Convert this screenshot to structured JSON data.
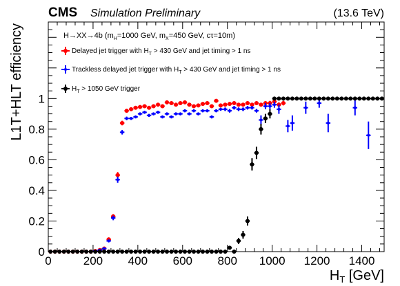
{
  "header": {
    "experiment": "CMS",
    "status": "Simulation Preliminary",
    "energy": "(13.6 TeV)"
  },
  "legend": {
    "heading": "H→XX→4b (m",
    "heading_sub1": "H",
    "heading_mid": "=1000 GeV, m",
    "heading_sub2": "X",
    "heading_tail": "=450 GeV, cτ=10m)"
  },
  "chart_data": {
    "type": "scatter",
    "xlabel": "H",
    "xlabel_sub": "T",
    "xlabel_unit": " [GeV]",
    "ylabel": "L1T+HLT efficiency",
    "xlim": [
      0,
      1500
    ],
    "ylim": [
      0,
      1.5
    ],
    "x_ticks": [
      0,
      200,
      400,
      600,
      800,
      1000,
      1200,
      1400
    ],
    "y_ticks": [
      0,
      0.2,
      0.4,
      0.6,
      0.8,
      1
    ],
    "series": [
      {
        "name_pre": "Delayed jet trigger with H",
        "name_sub": "T",
        "name_post": " > 430 GeV and jet timing > 1 ns",
        "color": "#ff0000",
        "x": [
          10,
          30,
          50,
          70,
          90,
          110,
          130,
          150,
          170,
          190,
          210,
          230,
          250,
          270,
          290,
          310,
          330,
          350,
          370,
          390,
          410,
          430,
          450,
          470,
          490,
          510,
          530,
          550,
          570,
          590,
          610,
          630,
          650,
          670,
          690,
          710,
          730,
          750,
          770,
          790,
          810,
          830,
          850,
          870,
          890,
          910,
          930,
          950,
          970,
          990,
          1010,
          1030,
          1050
        ],
        "y": [
          0,
          0,
          0,
          0,
          0,
          0,
          0,
          0,
          0,
          0,
          0.004,
          0.01,
          0.02,
          0.08,
          0.23,
          0.5,
          0.84,
          0.92,
          0.93,
          0.94,
          0.945,
          0.95,
          0.94,
          0.95,
          0.96,
          0.95,
          0.975,
          0.97,
          0.96,
          0.97,
          0.975,
          0.96,
          0.95,
          0.955,
          0.965,
          0.97,
          0.95,
          0.985,
          0.955,
          0.96,
          0.965,
          0.97,
          0.96,
          0.96,
          0.97,
          0.96,
          0.97,
          0.96,
          0.97,
          0.97,
          0.98,
          0.96,
          0.97
        ],
        "yerr": [
          0,
          0,
          0,
          0,
          0,
          0,
          0,
          0,
          0,
          0,
          0.003,
          0.005,
          0.006,
          0.01,
          0.015,
          0.02,
          0.015,
          0.012,
          0.01,
          0.01,
          0.01,
          0.01,
          0.01,
          0.01,
          0.01,
          0.01,
          0.01,
          0.01,
          0.01,
          0.01,
          0.01,
          0.01,
          0.01,
          0.01,
          0.01,
          0.01,
          0.01,
          0.01,
          0.01,
          0.012,
          0.012,
          0.012,
          0.012,
          0.012,
          0.012,
          0.012,
          0.012,
          0.012,
          0.012,
          0.015,
          0.015,
          0.015,
          0.015
        ]
      },
      {
        "name_pre": "Trackless delayed jet trigger with H",
        "name_sub": "T",
        "name_post": " > 430 GeV and jet timing > 1 ns",
        "color": "#0000ff",
        "x": [
          10,
          30,
          50,
          70,
          90,
          110,
          130,
          150,
          170,
          190,
          210,
          230,
          250,
          270,
          290,
          310,
          330,
          350,
          370,
          390,
          410,
          430,
          450,
          470,
          490,
          510,
          530,
          550,
          570,
          590,
          610,
          630,
          650,
          670,
          690,
          710,
          730,
          750,
          770,
          790,
          810,
          830,
          850,
          870,
          890,
          910,
          930,
          950,
          970,
          990,
          1010,
          1030,
          1070,
          1090,
          1150,
          1210,
          1250,
          1370,
          1430
        ],
        "y": [
          0,
          0,
          0,
          0,
          0,
          0,
          0,
          0,
          0,
          0,
          0.004,
          0.01,
          0.02,
          0.07,
          0.22,
          0.47,
          0.78,
          0.87,
          0.87,
          0.88,
          0.9,
          0.91,
          0.89,
          0.9,
          0.91,
          0.88,
          0.9,
          0.88,
          0.9,
          0.9,
          0.92,
          0.9,
          0.92,
          0.9,
          0.92,
          0.92,
          0.88,
          0.92,
          0.93,
          0.93,
          0.92,
          0.94,
          0.93,
          0.93,
          0.94,
          0.94,
          0.92,
          0.86,
          0.95,
          0.95,
          0.96,
          0.93,
          0.82,
          0.84,
          0.94,
          0.97,
          0.84,
          0.94,
          0.76
        ],
        "yerr": [
          0,
          0,
          0,
          0,
          0,
          0,
          0,
          0,
          0,
          0,
          0.003,
          0.005,
          0.006,
          0.01,
          0.015,
          0.02,
          0.015,
          0.012,
          0.01,
          0.01,
          0.01,
          0.01,
          0.01,
          0.01,
          0.01,
          0.01,
          0.01,
          0.01,
          0.01,
          0.01,
          0.01,
          0.01,
          0.01,
          0.01,
          0.01,
          0.01,
          0.01,
          0.01,
          0.01,
          0.012,
          0.012,
          0.012,
          0.012,
          0.012,
          0.012,
          0.012,
          0.012,
          0.03,
          0.02,
          0.02,
          0.02,
          0.03,
          0.04,
          0.05,
          0.04,
          0.03,
          0.06,
          0.05,
          0.09
        ]
      },
      {
        "name_pre": "H",
        "name_sub": "T",
        "name_post": " > 1050 GeV trigger",
        "color": "#000000",
        "x": [
          10,
          30,
          50,
          70,
          90,
          110,
          130,
          150,
          170,
          190,
          210,
          230,
          250,
          270,
          290,
          310,
          330,
          350,
          370,
          390,
          410,
          430,
          450,
          470,
          490,
          510,
          530,
          550,
          570,
          590,
          610,
          630,
          650,
          670,
          690,
          710,
          730,
          750,
          770,
          790,
          810,
          830,
          850,
          870,
          890,
          910,
          930,
          950,
          970,
          990,
          1010,
          1030,
          1050,
          1070,
          1090,
          1110,
          1130,
          1150,
          1170,
          1190,
          1210,
          1230,
          1250,
          1270,
          1290,
          1310,
          1330,
          1350,
          1370,
          1390,
          1410,
          1430,
          1450,
          1470,
          1490
        ],
        "y": [
          0,
          0,
          0,
          0,
          0,
          0,
          0,
          0,
          0,
          0,
          0,
          0,
          0,
          0,
          0,
          0,
          0,
          0,
          0,
          0,
          0,
          0,
          0,
          0,
          0,
          0,
          0,
          0,
          0,
          0,
          0,
          0,
          0,
          0,
          0,
          0,
          0,
          0,
          0,
          0,
          0.025,
          0,
          0.07,
          0.11,
          0.2,
          0.57,
          0.645,
          0.8,
          0.87,
          0.9,
          1,
          1,
          1,
          1,
          1,
          1,
          1,
          1,
          1,
          1,
          1,
          1,
          1,
          1,
          1,
          1,
          1,
          1,
          1,
          1,
          1,
          1,
          1,
          1,
          1
        ],
        "yerr": [
          0,
          0,
          0,
          0,
          0,
          0,
          0,
          0,
          0,
          0,
          0,
          0,
          0,
          0,
          0,
          0,
          0,
          0,
          0,
          0,
          0,
          0,
          0,
          0,
          0,
          0,
          0,
          0,
          0,
          0,
          0,
          0,
          0,
          0,
          0,
          0,
          0,
          0,
          0,
          0,
          0.01,
          0,
          0.02,
          0.025,
          0.03,
          0.04,
          0.04,
          0.035,
          0.03,
          0.03,
          0,
          0,
          0,
          0,
          0,
          0,
          0,
          0,
          0,
          0,
          0,
          0,
          0,
          0,
          0,
          0,
          0,
          0,
          0,
          0,
          0,
          0,
          0,
          0,
          0
        ]
      }
    ],
    "grid": false,
    "legend_position": "top-left"
  }
}
